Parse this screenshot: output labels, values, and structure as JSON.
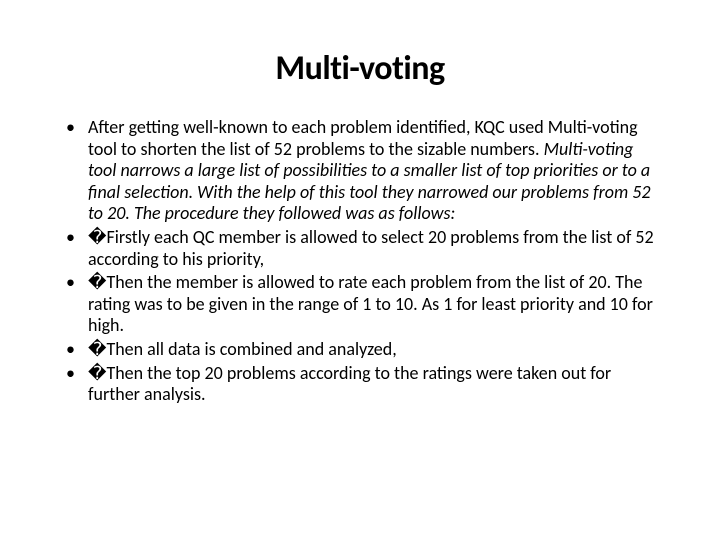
{
  "title": "Multi-voting",
  "bullets": [
    {
      "pre": "After getting well-known to each problem identified, KQC used Multi-voting tool to shorten the list of 52 problems to the sizable numbers. ",
      "italic": "Multi-voting tool narrows a large list of possibilities to a smaller list of top priorities or to a final selection. With the help of this tool they narrowed our problems from 52 to 20. The procedure they followed was as follows:",
      "post": ""
    },
    {
      "pre": "�Firstly each QC member is allowed to select 20 problems from the list of 52 according to his priority,",
      "italic": "",
      "post": ""
    },
    {
      "pre": "�Then the member is allowed to rate each problem from the list of 20. The rating was to be given in the range of 1 to 10. As 1 for least priority and 10 for high.",
      "italic": "",
      "post": ""
    },
    {
      "pre": "�Then all data is combined and analyzed,",
      "italic": "",
      "post": ""
    },
    {
      "pre": "�Then the top 20 problems according to the ratings were taken out for further analysis.",
      "italic": "",
      "post": ""
    }
  ],
  "style": {
    "background_color": "#ffffff",
    "text_color": "#000000",
    "title_fontsize": 34,
    "body_fontsize": 18,
    "font_family": "Calibri"
  }
}
